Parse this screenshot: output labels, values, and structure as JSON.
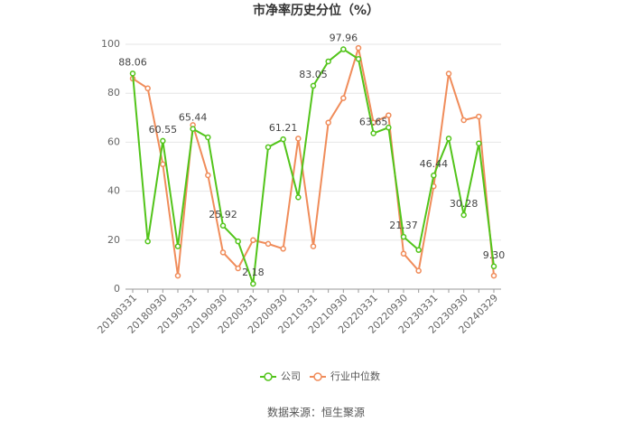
{
  "chart_data": {
    "type": "line",
    "title": "市净率历史分位（%）",
    "categories": [
      "20180331",
      null,
      "20180930",
      null,
      "20190331",
      null,
      "20190930",
      null,
      "20200331",
      null,
      "20200930",
      null,
      "20210331",
      null,
      "20210930",
      null,
      "20220331",
      null,
      "20220930",
      null,
      "20230331",
      null,
      "20230930",
      null,
      "20240329"
    ],
    "series": [
      {
        "name": "公司",
        "color": "#52c41a",
        "values": [
          88.06,
          19.5,
          60.55,
          17.5,
          65.44,
          62,
          25.92,
          19.5,
          2.18,
          58,
          61.21,
          37.5,
          83.05,
          93,
          97.96,
          94,
          63.65,
          66,
          21.37,
          16,
          46.44,
          61.5,
          30.28,
          59.5,
          9.3
        ],
        "value_labels": [
          "88.06",
          null,
          "60.55",
          null,
          "65.44",
          null,
          "25.92",
          null,
          "2.18",
          null,
          "61.21",
          null,
          "83.05",
          null,
          "97.96",
          null,
          "63.65",
          null,
          "21.37",
          null,
          "46.44",
          null,
          "30.28",
          null,
          "9.30"
        ]
      },
      {
        "name": "行业中位数",
        "color": "#f08c5a",
        "values": [
          86,
          82,
          51,
          5.5,
          67,
          46.5,
          15,
          8.5,
          20,
          18.5,
          16.5,
          61.5,
          17.5,
          68,
          78,
          98.5,
          68,
          71,
          14.5,
          7.5,
          42,
          88,
          69,
          70.5,
          5.5
        ]
      }
    ],
    "ylim": [
      0,
      100
    ],
    "yticks": [
      0,
      20,
      40,
      60,
      80,
      100
    ],
    "grid": true,
    "source": "数据来源：恒生聚源"
  }
}
